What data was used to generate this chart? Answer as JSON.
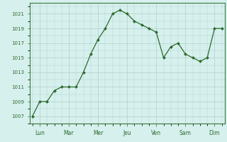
{
  "x_values": [
    0,
    0.5,
    1,
    1.5,
    2,
    2.5,
    3,
    3.5,
    4,
    4.5,
    5,
    5.5,
    6,
    6.5,
    7,
    7.5,
    8,
    8.5,
    9,
    9.5,
    10,
    10.5,
    11,
    11.5,
    12,
    12.5,
    13
  ],
  "y_values": [
    1007,
    1009,
    1009,
    1010.5,
    1011,
    1011,
    1011,
    1013,
    1015.5,
    1017.5,
    1019,
    1021,
    1021.5,
    1021,
    1020,
    1019.5,
    1019,
    1018.5,
    1015,
    1016.5,
    1017,
    1015.5,
    1015,
    1014.5,
    1015,
    1019,
    1019
  ],
  "day_positions": [
    0.5,
    2.5,
    4.5,
    6.5,
    8.5,
    10.5,
    12.5
  ],
  "day_labels": [
    "Lun",
    "Mar",
    "Mer",
    "Jeu",
    "Ven",
    "Sam",
    "Dim"
  ],
  "ylim": [
    1006,
    1022.5
  ],
  "yticks": [
    1007,
    1009,
    1011,
    1013,
    1015,
    1017,
    1019,
    1021
  ],
  "xlim": [
    -0.2,
    13.2
  ],
  "line_color": "#2d6a2d",
  "marker_color": "#2d6a2d",
  "bg_color": "#d6f0ee",
  "grid_color": "#b0cfc8",
  "axis_color": "#3a7a3a",
  "tick_label_color": "#2d6a2d",
  "figsize": [
    3.2,
    2.0
  ],
  "dpi": 100
}
